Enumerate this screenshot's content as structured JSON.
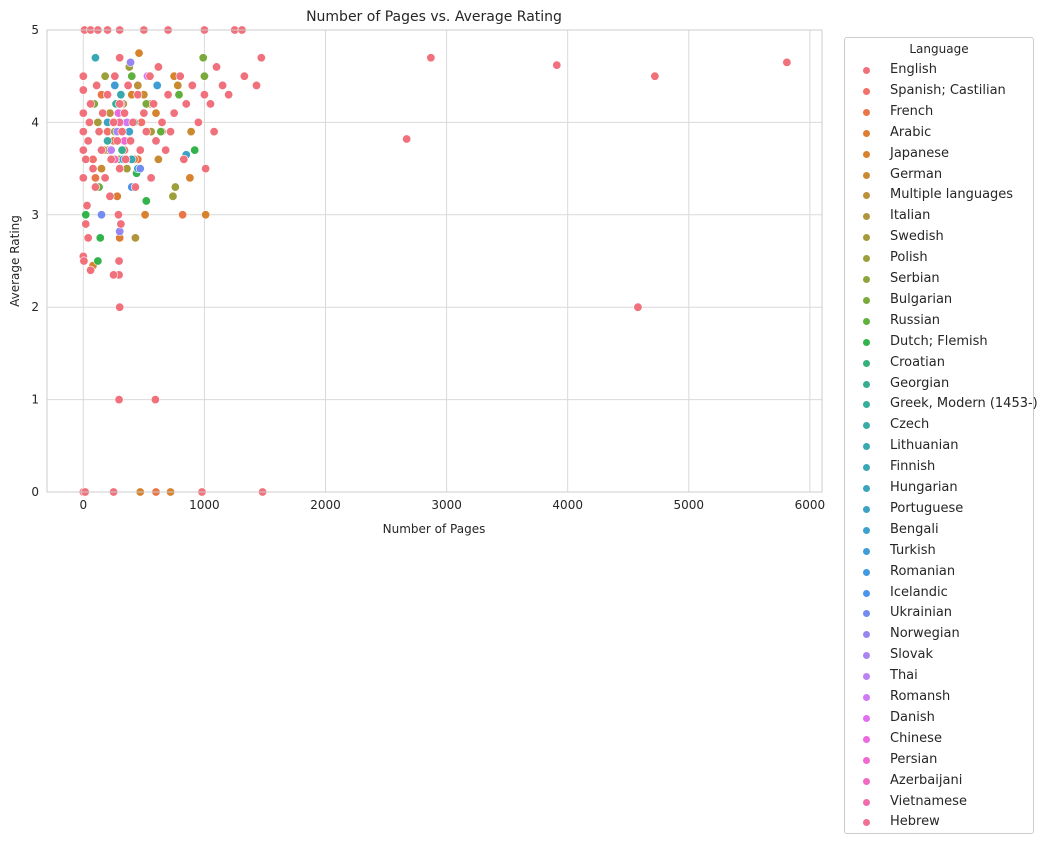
{
  "chart_data": {
    "type": "scatter",
    "title": "Number of Pages vs. Average Rating",
    "xlabel": "Number of Pages",
    "ylabel": "Average Rating",
    "xlim": [
      -300,
      6100
    ],
    "ylim": [
      0,
      5
    ],
    "xticks": [
      0,
      1000,
      2000,
      3000,
      4000,
      5000,
      6000
    ],
    "yticks": [
      0,
      1,
      2,
      3,
      4,
      5
    ],
    "grid": true,
    "legend_title": "Language",
    "legend_placement": "right, outside plot",
    "series": [
      {
        "name": "English",
        "color": "#f0717b",
        "points": [
          [
            0,
            0
          ],
          [
            15,
            0
          ],
          [
            250,
            0
          ],
          [
            980,
            0
          ],
          [
            1480,
            0
          ],
          [
            0,
            2.55
          ],
          [
            5,
            2.5
          ],
          [
            40,
            2.75
          ],
          [
            60,
            2.4
          ],
          [
            20,
            2.9
          ],
          [
            30,
            3.1
          ],
          [
            0,
            3.4
          ],
          [
            0,
            3.7
          ],
          [
            0,
            3.9
          ],
          [
            0,
            4.1
          ],
          [
            0,
            4.35
          ],
          [
            0,
            4.5
          ],
          [
            10,
            5
          ],
          [
            60,
            5
          ],
          [
            120,
            5
          ],
          [
            200,
            5
          ],
          [
            300,
            5
          ],
          [
            500,
            5
          ],
          [
            700,
            5
          ],
          [
            1000,
            5
          ],
          [
            1250,
            5
          ],
          [
            1310,
            5
          ],
          [
            20,
            3.6
          ],
          [
            40,
            3.8
          ],
          [
            50,
            4.0
          ],
          [
            60,
            4.2
          ],
          [
            80,
            3.5
          ],
          [
            100,
            3.3
          ],
          [
            110,
            4.4
          ],
          [
            130,
            3.9
          ],
          [
            150,
            3.7
          ],
          [
            160,
            4.1
          ],
          [
            180,
            3.4
          ],
          [
            200,
            4.3
          ],
          [
            220,
            3.2
          ],
          [
            230,
            3.6
          ],
          [
            250,
            4.0
          ],
          [
            260,
            4.5
          ],
          [
            280,
            3.8
          ],
          [
            290,
            3.0
          ],
          [
            300,
            4.2
          ],
          [
            300,
            3.5
          ],
          [
            300,
            4.7
          ],
          [
            310,
            2.9
          ],
          [
            320,
            3.9
          ],
          [
            340,
            4.1
          ],
          [
            350,
            3.6
          ],
          [
            370,
            4.4
          ],
          [
            390,
            3.8
          ],
          [
            410,
            4.0
          ],
          [
            430,
            3.3
          ],
          [
            450,
            4.3
          ],
          [
            470,
            3.7
          ],
          [
            500,
            4.1
          ],
          [
            520,
            3.9
          ],
          [
            550,
            4.5
          ],
          [
            560,
            3.4
          ],
          [
            580,
            4.2
          ],
          [
            600,
            3.8
          ],
          [
            620,
            4.6
          ],
          [
            650,
            4.0
          ],
          [
            680,
            3.7
          ],
          [
            700,
            4.3
          ],
          [
            720,
            3.9
          ],
          [
            750,
            4.1
          ],
          [
            800,
            4.5
          ],
          [
            830,
            3.6
          ],
          [
            850,
            4.2
          ],
          [
            900,
            4.4
          ],
          [
            950,
            4.0
          ],
          [
            1000,
            4.3
          ],
          [
            1010,
            3.5
          ],
          [
            1050,
            4.2
          ],
          [
            1080,
            3.9
          ],
          [
            1100,
            4.6
          ],
          [
            1150,
            4.4
          ],
          [
            1200,
            4.3
          ],
          [
            1330,
            4.5
          ],
          [
            1430,
            4.4
          ],
          [
            1470,
            4.7
          ],
          [
            295,
            2.5
          ],
          [
            295,
            2.35
          ],
          [
            250,
            2.35
          ],
          [
            300,
            2.0
          ],
          [
            295,
            1.0
          ],
          [
            595,
            1.0
          ],
          [
            2670,
            3.82
          ],
          [
            2870,
            4.7
          ],
          [
            3910,
            4.62
          ],
          [
            4580,
            2.0
          ],
          [
            4720,
            4.5
          ],
          [
            5810,
            4.65
          ]
        ]
      },
      {
        "name": "Spanish; Castilian",
        "color": "#f0726a",
        "points": [
          [
            80,
            3.6
          ],
          [
            200,
            3.9
          ],
          [
            340,
            3.7
          ],
          [
            480,
            4.0
          ]
        ]
      },
      {
        "name": "French",
        "color": "#ea7547",
        "points": [
          [
            100,
            3.4
          ],
          [
            150,
            4.3
          ],
          [
            250,
            3.8
          ],
          [
            320,
            4.1
          ],
          [
            450,
            3.6
          ],
          [
            550,
            4.2
          ],
          [
            650,
            3.9
          ],
          [
            820,
            3.0
          ],
          [
            0,
            0
          ],
          [
            600,
            0
          ]
        ]
      },
      {
        "name": "Arabic",
        "color": "#dd7d34",
        "points": [
          [
            280,
            3.2
          ],
          [
            300,
            2.75
          ],
          [
            420,
            3.6
          ]
        ]
      },
      {
        "name": "Japanese",
        "color": "#d7822f",
        "points": [
          [
            80,
            2.45
          ],
          [
            200,
            3.7
          ],
          [
            300,
            3.5
          ],
          [
            400,
            4.3
          ],
          [
            460,
            4.75
          ],
          [
            510,
            3.0
          ],
          [
            600,
            4.1
          ],
          [
            750,
            4.5
          ],
          [
            880,
            3.4
          ],
          [
            1010,
            3.0
          ],
          [
            950,
            4.0
          ],
          [
            720,
            0
          ],
          [
            470,
            0
          ]
        ]
      },
      {
        "name": "German",
        "color": "#c98b31",
        "points": [
          [
            150,
            3.5
          ],
          [
            250,
            4.0
          ],
          [
            350,
            3.8
          ],
          [
            500,
            4.3
          ],
          [
            620,
            3.6
          ],
          [
            780,
            4.4
          ],
          [
            890,
            3.9
          ]
        ]
      },
      {
        "name": "Multiple languages",
        "color": "#bd903a",
        "points": [
          [
            220,
            4.1
          ],
          [
            450,
            4.4
          ]
        ]
      },
      {
        "name": "Italian",
        "color": "#b0953b",
        "points": [
          [
            170,
            3.7
          ],
          [
            330,
            4.2
          ],
          [
            430,
            2.75
          ],
          [
            560,
            3.9
          ]
        ]
      },
      {
        "name": "Swedish",
        "color": "#a69b3a",
        "points": [
          [
            120,
            4.0
          ],
          [
            360,
            3.5
          ]
        ]
      },
      {
        "name": "Polish",
        "color": "#9c9f3b",
        "points": [
          [
            180,
            4.5
          ],
          [
            380,
            4.6
          ],
          [
            760,
            3.3
          ],
          [
            740,
            3.2
          ]
        ]
      },
      {
        "name": "Serbian",
        "color": "#8ea53b",
        "points": [
          [
            260,
            3.9
          ]
        ]
      },
      {
        "name": "Bulgarian",
        "color": "#7aaa3b",
        "points": [
          [
            90,
            4.2
          ],
          [
            300,
            3.6
          ],
          [
            520,
            4.2
          ],
          [
            990,
            4.7
          ],
          [
            1000,
            4.5
          ]
        ]
      },
      {
        "name": "Russian",
        "color": "#5fb03d",
        "points": [
          [
            130,
            3.3
          ],
          [
            400,
            4.5
          ],
          [
            640,
            3.9
          ],
          [
            790,
            4.3
          ]
        ]
      },
      {
        "name": "Dutch; Flemish",
        "color": "#32b34c",
        "points": [
          [
            20,
            3.0
          ],
          [
            140,
            2.75
          ],
          [
            120,
            2.5
          ],
          [
            350,
            3.8
          ],
          [
            440,
            3.45
          ],
          [
            520,
            3.15
          ],
          [
            920,
            3.7
          ]
        ]
      },
      {
        "name": "Croatian",
        "color": "#36b17c",
        "points": [
          [
            300,
            4.1
          ]
        ]
      },
      {
        "name": "Georgian",
        "color": "#36ae8f",
        "points": [
          [
            320,
            3.7
          ]
        ]
      },
      {
        "name": "Greek, Modern (1453-)",
        "color": "#37ad9b",
        "points": [
          [
            270,
            4.2
          ],
          [
            420,
            4.0
          ]
        ]
      },
      {
        "name": "Czech",
        "color": "#38aba5",
        "points": [
          [
            200,
            3.8
          ]
        ]
      },
      {
        "name": "Lithuanian",
        "color": "#39a9ae",
        "points": [
          [
            310,
            4.3
          ]
        ]
      },
      {
        "name": "Finnish",
        "color": "#3aa7b6",
        "points": [
          [
            100,
            4.7
          ],
          [
            400,
            3.6
          ]
        ]
      },
      {
        "name": "Hungarian",
        "color": "#3ba5bd",
        "points": [
          [
            350,
            4.0
          ]
        ]
      },
      {
        "name": "Portuguese",
        "color": "#3da3c5",
        "points": [
          [
            200,
            4.0
          ],
          [
            450,
            3.5
          ],
          [
            850,
            3.65
          ]
        ]
      },
      {
        "name": "Bengali",
        "color": "#3ea1cd",
        "points": [
          [
            380,
            3.9
          ]
        ]
      },
      {
        "name": "Turkish",
        "color": "#3f9dd6",
        "points": [
          [
            260,
            4.4
          ],
          [
            610,
            4.4
          ]
        ]
      },
      {
        "name": "Romanian",
        "color": "#4199e0",
        "points": [
          [
            330,
            3.6
          ]
        ]
      },
      {
        "name": "Icelandic",
        "color": "#4a94eb",
        "points": [
          [
            400,
            3.3
          ]
        ]
      },
      {
        "name": "Ukrainian",
        "color": "#748bef",
        "points": [
          [
            150,
            3.0
          ],
          [
            470,
            3.5
          ]
        ]
      },
      {
        "name": "Norwegian",
        "color": "#9586f2",
        "points": [
          [
            390,
            4.65
          ],
          [
            300,
            2.82
          ]
        ]
      },
      {
        "name": "Slovak",
        "color": "#a885f2",
        "points": [
          [
            280,
            3.9
          ]
        ]
      },
      {
        "name": "Thai",
        "color": "#bb82f3",
        "points": [
          [
            230,
            3.7
          ]
        ]
      },
      {
        "name": "Romansh",
        "color": "#cf79f3",
        "points": [
          [
            360,
            4.0
          ]
        ]
      },
      {
        "name": "Danish",
        "color": "#e070ed",
        "points": [
          [
            530,
            4.5
          ]
        ]
      },
      {
        "name": "Chinese",
        "color": "#eb69e1",
        "points": [
          [
            290,
            4.1
          ]
        ]
      },
      {
        "name": "Persian",
        "color": "#f068d2",
        "points": [
          [
            340,
            3.8
          ]
        ]
      },
      {
        "name": "Azerbaijani",
        "color": "#f16ac1",
        "points": [
          [
            310,
            4.2
          ]
        ]
      },
      {
        "name": "Vietnamese",
        "color": "#f16cac",
        "points": [
          [
            260,
            3.6
          ]
        ]
      },
      {
        "name": "Hebrew",
        "color": "#f06f93",
        "points": [
          [
            300,
            4.0
          ]
        ]
      }
    ]
  }
}
